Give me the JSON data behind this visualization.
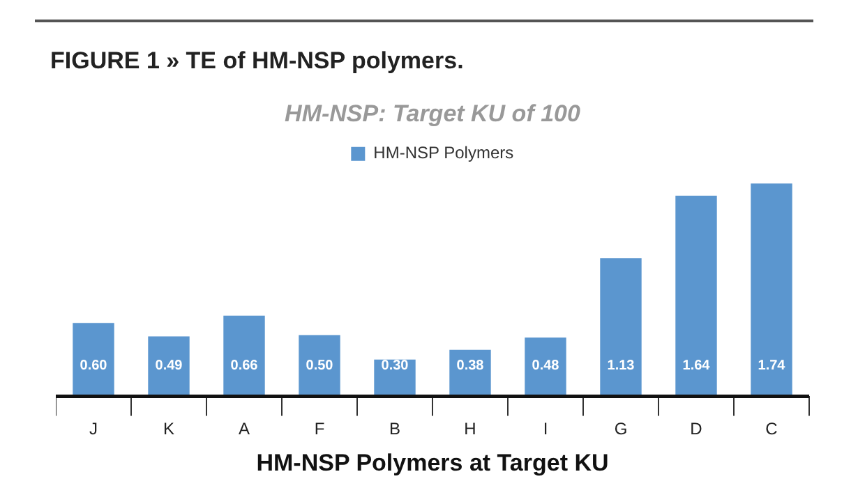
{
  "chart_data": {
    "type": "bar",
    "title": "FIGURE 1 » TE of HM-NSP polymers.",
    "subtitle": "HM-NSP: Target KU of 100",
    "xlabel": "HM-NSP Polymers at Target KU",
    "categories": [
      "J",
      "K",
      "A",
      "F",
      "B",
      "H",
      "I",
      "G",
      "D",
      "C"
    ],
    "series": [
      {
        "name": "HM-NSP Polymers",
        "color": "#5b96cf",
        "values": [
          0.6,
          0.49,
          0.66,
          0.5,
          0.3,
          0.38,
          0.48,
          1.13,
          1.64,
          1.74
        ],
        "value_labels": [
          "0.60",
          "0.49",
          "0.66",
          "0.50",
          "0.30",
          "0.38",
          "0.48",
          "1.13",
          "1.64",
          "1.74"
        ]
      }
    ],
    "legend": "top",
    "grid": false
  }
}
